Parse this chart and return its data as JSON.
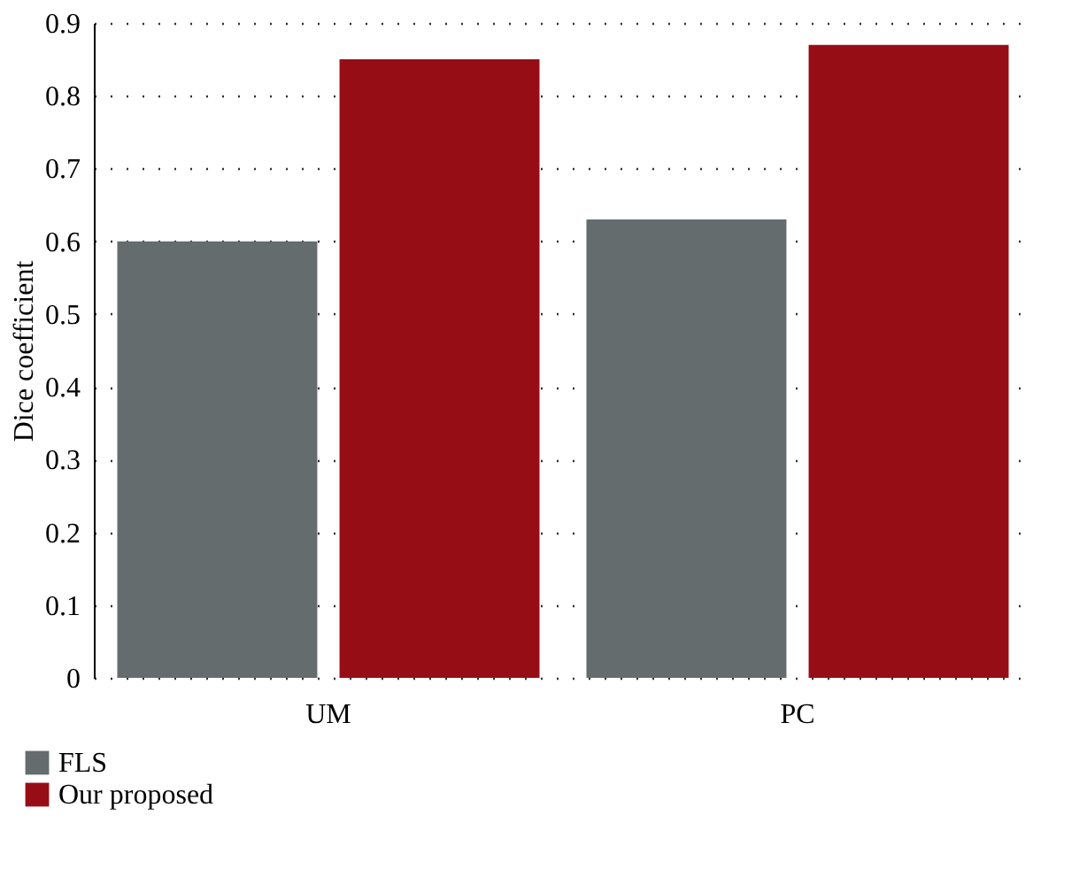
{
  "chart_data": {
    "type": "bar",
    "ylabel": "Dice coefficient",
    "categories": [
      "UM",
      "PC"
    ],
    "series": [
      {
        "name": "FLS",
        "color": "#646c6d",
        "values": [
          0.6,
          0.63
        ]
      },
      {
        "name": "Our proposed",
        "color": "#970d16",
        "values": [
          0.85,
          0.87
        ]
      }
    ],
    "ylim": [
      0,
      0.9
    ],
    "yticks": [
      0,
      0.1,
      0.2,
      0.3,
      0.4,
      0.5,
      0.6,
      0.7,
      0.8,
      0.9
    ],
    "grid": "y",
    "legend": "bottom left"
  }
}
